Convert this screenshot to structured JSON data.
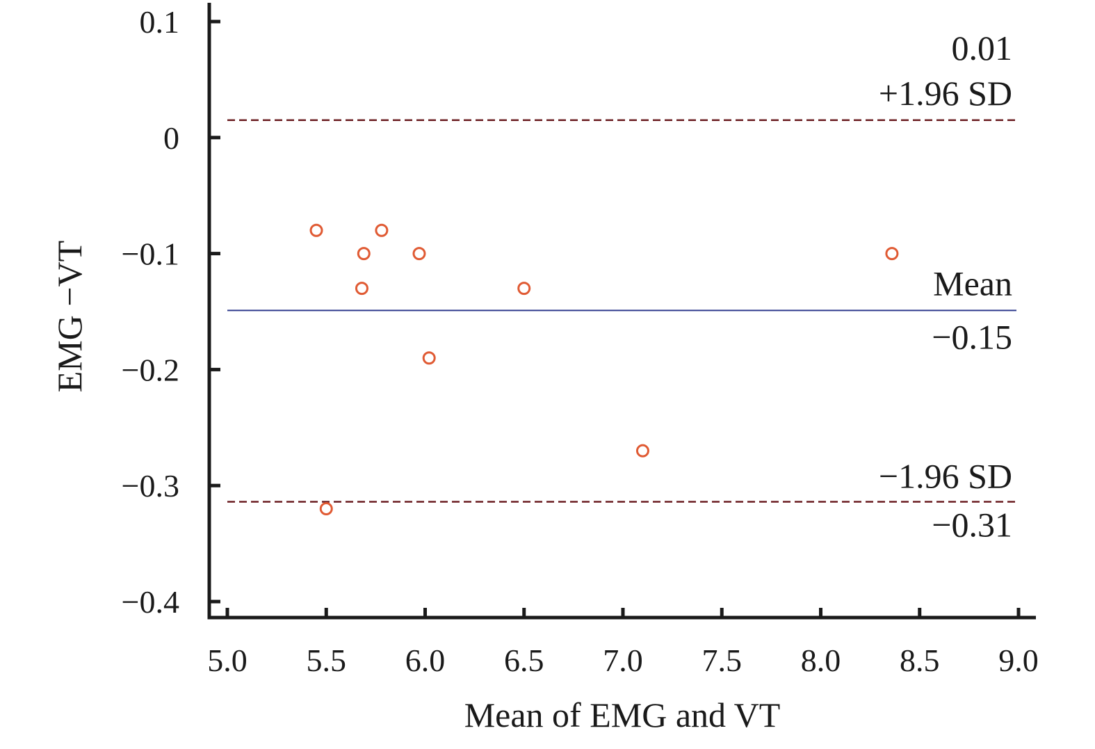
{
  "chart_data": {
    "type": "scatter",
    "xlabel": "Mean of EMG and VT",
    "ylabel": "EMG −VT",
    "xlim": [
      5.0,
      9.0
    ],
    "ylim": [
      -0.4,
      0.1
    ],
    "x_ticks": [
      "5.0",
      "5.5",
      "6.0",
      "6.5",
      "7.0",
      "7.5",
      "8.0",
      "8.5",
      "9.0"
    ],
    "y_ticks": [
      "0.1",
      "0",
      "−0.1",
      "−0.2",
      "−0.3",
      "−0.4"
    ],
    "x_tick_values": [
      5.0,
      5.5,
      6.0,
      6.5,
      7.0,
      7.5,
      8.0,
      8.5,
      9.0
    ],
    "y_tick_values": [
      0.1,
      0,
      -0.1,
      -0.2,
      -0.3,
      -0.4
    ],
    "points": [
      {
        "x": 5.45,
        "y": -0.08
      },
      {
        "x": 5.5,
        "y": -0.32
      },
      {
        "x": 5.68,
        "y": -0.13
      },
      {
        "x": 5.69,
        "y": -0.1
      },
      {
        "x": 5.78,
        "y": -0.08
      },
      {
        "x": 5.97,
        "y": -0.1
      },
      {
        "x": 6.02,
        "y": -0.19
      },
      {
        "x": 6.5,
        "y": -0.13
      },
      {
        "x": 7.1,
        "y": -0.27
      },
      {
        "x": 8.36,
        "y": -0.1
      }
    ],
    "reference_lines": [
      {
        "name": "upper_loa",
        "y": 0.015,
        "style": "dashed",
        "label_top": "0.01",
        "label_bottom": "+1.96 SD"
      },
      {
        "name": "mean",
        "y": -0.149,
        "style": "solid",
        "label_top": "Mean",
        "label_bottom": "−0.15"
      },
      {
        "name": "lower_loa",
        "y": -0.314,
        "style": "dashed",
        "label_top": "−1.96 SD",
        "label_bottom": "−0.31"
      }
    ],
    "grid": false,
    "colors": {
      "points": "#e05a33",
      "mean_line": "#2e3a8c",
      "loa_line": "#6b1e22",
      "axes": "#1a1a1a"
    }
  }
}
